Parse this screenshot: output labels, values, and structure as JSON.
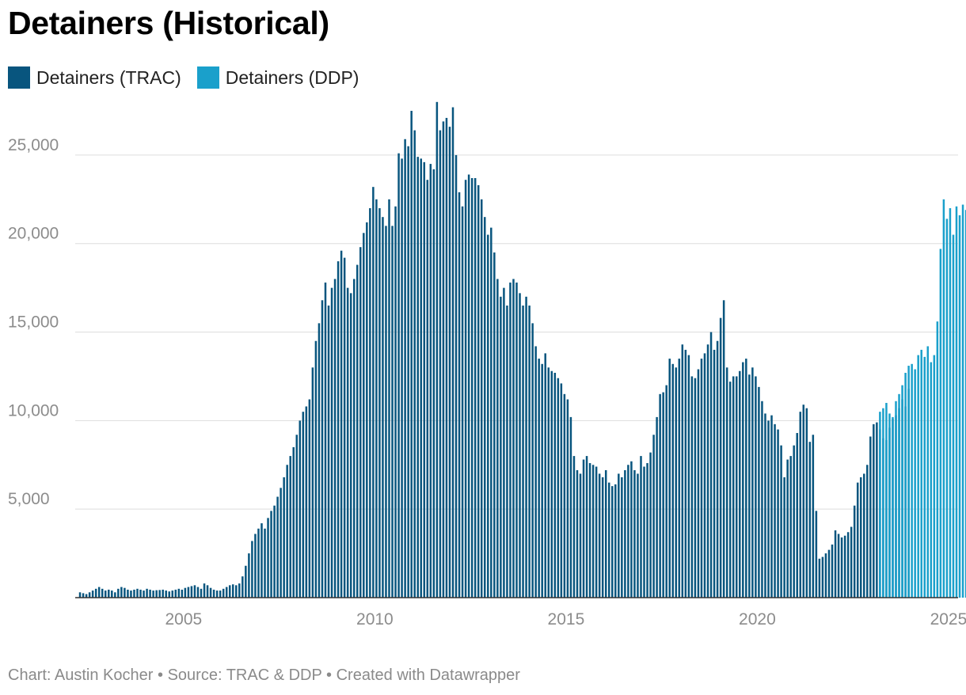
{
  "title": "Detainers (Historical)",
  "legend": [
    {
      "label": "Detainers (TRAC)",
      "color": "#08557e"
    },
    {
      "label": "Detainers (DDP)",
      "color": "#1aa0cb"
    }
  ],
  "footer": {
    "credit": "Chart: Austin Kocher",
    "source": "Source: TRAC & DDP",
    "tool": "Created with Datawrapper",
    "separator": "•"
  },
  "colors": {
    "grid": "#dddddd",
    "axis": "#333333",
    "tick_label": "#8c8c8c"
  },
  "chart_data": {
    "type": "bar",
    "frequency": "monthly",
    "ylim": [
      0,
      27500
    ],
    "yticks": [
      5000,
      10000,
      15000,
      20000,
      25000
    ],
    "ytick_labels": [
      "5,000",
      "10,000",
      "15,000",
      "20,000",
      "25,000"
    ],
    "xlim": [
      "2002-09",
      "2025-10"
    ],
    "xtick_labels": [
      "2005",
      "2010",
      "2015",
      "2020",
      "2025"
    ],
    "grid": "horizontal",
    "legend_position": "top-left",
    "series": [
      {
        "name": "Detainers (TRAC)",
        "start": "2002-10",
        "values": [
          300,
          250,
          200,
          300,
          400,
          500,
          600,
          500,
          400,
          450,
          400,
          300,
          500,
          600,
          550,
          450,
          400,
          450,
          500,
          450,
          400,
          500,
          450,
          400,
          420,
          430,
          450,
          400,
          350,
          400,
          450,
          500,
          450,
          550,
          600,
          650,
          700,
          600,
          500,
          800,
          700,
          550,
          450,
          400,
          400,
          500,
          600,
          700,
          750,
          700,
          800,
          1200,
          1800,
          2500,
          3200,
          3600,
          3900,
          4200,
          3900,
          4500,
          4900,
          5200,
          5700,
          6200,
          6800,
          7500,
          8000,
          8500,
          9200,
          10000,
          10500,
          10800,
          11200,
          13000,
          14500,
          15500,
          16800,
          17800,
          16500,
          17500,
          18000,
          19000,
          19600,
          19200,
          17500,
          17200,
          18000,
          18800,
          19800,
          20600,
          21200,
          22000,
          23200,
          22500,
          22000,
          21500,
          21000,
          22500,
          21000,
          22100,
          25100,
          24800,
          25900,
          25500,
          27500,
          26400,
          24900,
          24800,
          24600,
          23600,
          24500,
          24200,
          28000,
          26400,
          26900,
          27100,
          26600,
          27700,
          25000,
          22900,
          22100,
          23600,
          23900,
          23700,
          23700,
          23300,
          22500,
          21500,
          20500,
          20900,
          19500,
          18000,
          17000,
          17500,
          16500,
          17800,
          18000,
          17800,
          17200,
          16500,
          17000,
          16500,
          15500,
          14200,
          13500,
          13200,
          13800,
          13000,
          12800,
          12700,
          12400,
          12100,
          11500,
          11200,
          10200,
          8000,
          7200,
          7000,
          7800,
          8000,
          7600,
          7500,
          7400,
          7000,
          6800,
          7200,
          6500,
          6300,
          6400,
          7000,
          6800,
          7200,
          7500,
          7700,
          7200,
          7000,
          8000,
          7400,
          7600,
          8200,
          9200,
          10200,
          11500,
          11600,
          12000,
          13500,
          13200,
          13000,
          13500,
          14300,
          14000,
          13700,
          12500,
          12400,
          12900,
          13500,
          13800,
          14300,
          15000,
          14000,
          14500,
          15800,
          16800,
          13000,
          12200,
          12500,
          12500,
          12800,
          13300,
          13500,
          12600,
          13000,
          12500,
          11900,
          11100,
          10400,
          10000,
          10300,
          9800,
          9500,
          8600,
          6800,
          7800,
          8000,
          8600,
          9300,
          10500,
          10900,
          10700,
          8800,
          9200,
          4900,
          2200,
          2300,
          2500,
          2700,
          3000,
          3800,
          3600,
          3400,
          3500,
          3700,
          4000,
          5200,
          6500,
          6800,
          7000,
          7500,
          9100,
          9800,
          9900,
          9500,
          9000,
          8900,
          9600,
          10100,
          10300,
          10700,
          11200,
          10800,
          11800
        ],
        "color": "#08557e"
      },
      {
        "name": "Detainers (DDP)",
        "start": "2023-09",
        "values": [
          10500,
          10700,
          11000,
          10400,
          10200,
          11100,
          11500,
          12000,
          12700,
          13100,
          13200,
          12900,
          13700,
          14000,
          13600,
          14200,
          13300,
          13700,
          15600,
          19700,
          22500,
          21400,
          22000,
          20500,
          22100,
          21600,
          22200,
          21900
        ],
        "color": "#1aa0cb"
      }
    ]
  }
}
